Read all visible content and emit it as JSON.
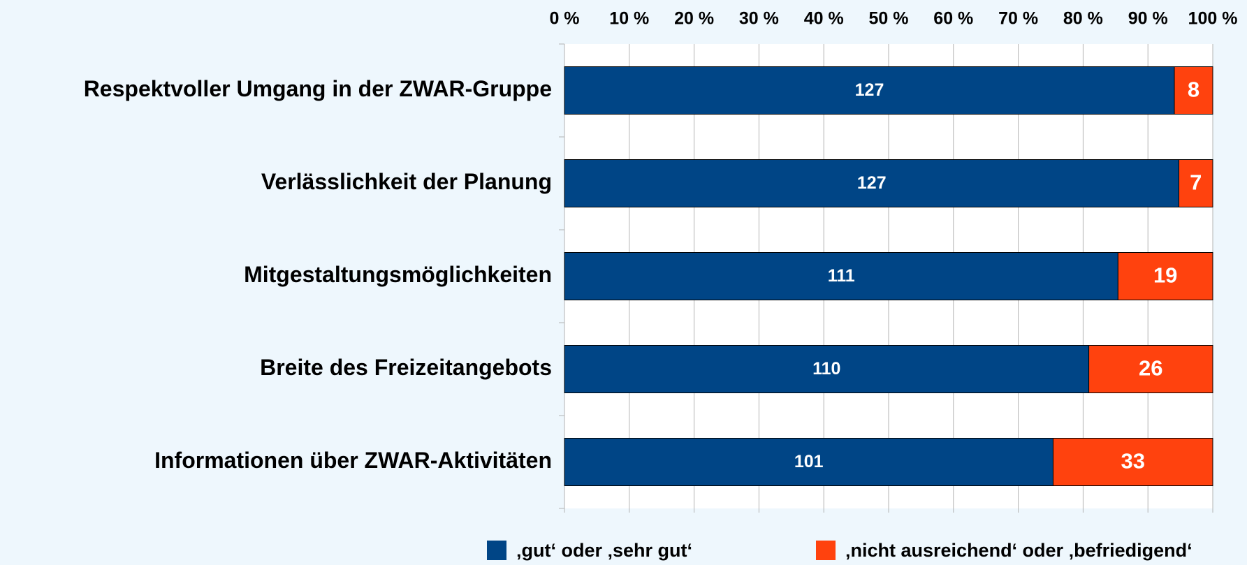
{
  "chart_data": {
    "type": "stacked_percent_barh",
    "categories": [
      "Respektvoller Umgang in der ZWAR-Gruppe",
      "Verlässlichkeit der Planung",
      "Mitgestaltungsmöglichkeiten",
      "Breite des Freizeitangebots",
      "Informationen über ZWAR-Aktivitäten"
    ],
    "series": [
      {
        "name": "‚gut‘ oder ‚sehr gut‘",
        "color": "#004586",
        "values": [
          127,
          127,
          111,
          110,
          101
        ]
      },
      {
        "name": "‚nicht ausreichend‘ oder ‚befriedigend‘",
        "color": "#ff420e",
        "values": [
          8,
          7,
          19,
          26,
          33
        ]
      }
    ],
    "xlim": [
      0,
      100
    ],
    "xticks": [
      {
        "value": 0,
        "label": "0 %"
      },
      {
        "value": 10,
        "label": "10 %"
      },
      {
        "value": 20,
        "label": "20 %"
      },
      {
        "value": 30,
        "label": "30 %"
      },
      {
        "value": 40,
        "label": "40 %"
      },
      {
        "value": 50,
        "label": "50 %"
      },
      {
        "value": 60,
        "label": "60 %"
      },
      {
        "value": 70,
        "label": "70 %"
      },
      {
        "value": 80,
        "label": "80 %"
      },
      {
        "value": 90,
        "label": "90 %"
      },
      {
        "value": 100,
        "label": "100 %"
      }
    ],
    "grid": true,
    "legend": "bottom"
  }
}
